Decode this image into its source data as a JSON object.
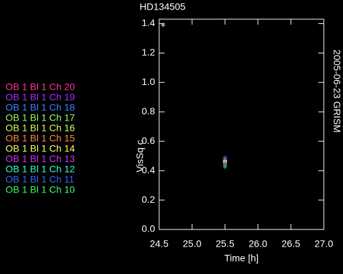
{
  "chart_data": {
    "type": "scatter",
    "title": "HD134505",
    "subtitle": "2005-06-23 GRISM",
    "x_label": "Time [h]",
    "y_label": "VisSq c",
    "x": [
      25.5
    ],
    "series": [
      {
        "name": "OB 1 Bl 1 Ch 20",
        "color": "#ff3399",
        "values": [
          0.49
        ]
      },
      {
        "name": "OB 1 Bl 1 Ch 19",
        "color": "#9933ff",
        "values": [
          0.485
        ]
      },
      {
        "name": "OB 1 Bl 1 Ch 18",
        "color": "#3388ff",
        "values": [
          0.475
        ]
      },
      {
        "name": "OB 1 Bl 1 Ch 17",
        "color": "#99ff66",
        "values": [
          0.47
        ]
      },
      {
        "name": "OB 1 Bl 1 Ch 16",
        "color": "#ccff66",
        "values": [
          0.465
        ]
      },
      {
        "name": "OB 1 Bl 1 Ch 15",
        "color": "#ff8844",
        "values": [
          0.46
        ]
      },
      {
        "name": "OB 1 Bl 1 Ch 14",
        "color": "#ffff66",
        "values": [
          0.455
        ]
      },
      {
        "name": "OB 1 Bl 1 Ch 13",
        "color": "#cc33ff",
        "values": [
          0.45
        ]
      },
      {
        "name": "OB 1 Bl 1 Ch 12",
        "color": "#33ffcc",
        "values": [
          0.44
        ]
      },
      {
        "name": "OB 1 Bl 1 Ch 11",
        "color": "#3366ff",
        "values": [
          0.435
        ]
      },
      {
        "name": "OB 1 Bl 1 Ch 10",
        "color": "#33ff66",
        "values": [
          0.425
        ]
      }
    ],
    "extra_point": {
      "x": 24.56,
      "y": 1.39,
      "color": "#ffffff"
    },
    "xlim": [
      24.5,
      27.0
    ],
    "xticks": [
      24.5,
      {
        "value": 25,
        "label": "25.0"
      },
      25.5,
      {
        "value": 26,
        "label": "26.0"
      },
      26.5,
      {
        "value": 27,
        "label": "27.0"
      }
    ],
    "ylim": [
      0,
      1.43
    ],
    "yticks": [
      {
        "value": 0,
        "label": "0.0"
      },
      0.2,
      0.4,
      0.6,
      0.8,
      {
        "value": 1,
        "label": "1.0"
      },
      1.2,
      1.4
    ],
    "axis_color": "#ffffff"
  }
}
